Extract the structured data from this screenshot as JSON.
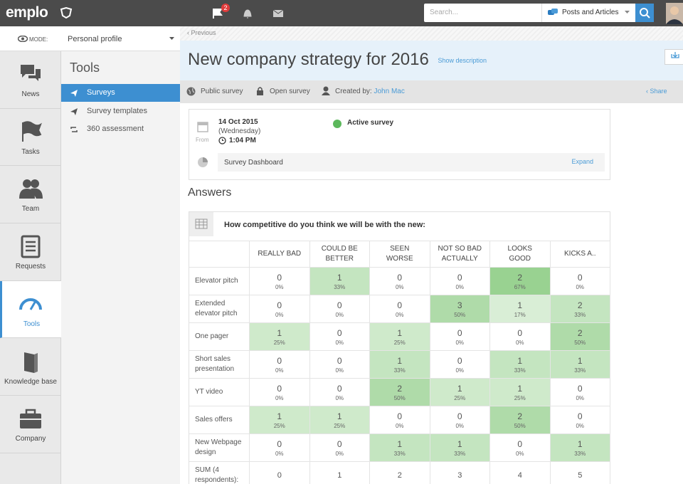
{
  "header": {
    "logo": "emplo",
    "notification_count": 2,
    "search_placeholder": "Search...",
    "search_scope": "Posts and Articles"
  },
  "sidebar": {
    "mode_label": "MODE:",
    "mode_value": "Personal profile",
    "nav": [
      "News",
      "Tasks",
      "Team",
      "Requests",
      "Tools",
      "Knowledge base",
      "Company"
    ]
  },
  "tools_panel": {
    "title": "Tools",
    "items": [
      "Surveys",
      "Survey templates",
      "360 assessment"
    ]
  },
  "page": {
    "back": "‹ Previous",
    "title": "New company strategy for 2016",
    "show_description": "Show description",
    "meta": {
      "visibility": "Public survey",
      "access": "Open survey",
      "created_by_label": "Created by:",
      "created_by": "John Mac",
      "share": "Share"
    }
  },
  "survey_info": {
    "date": "14 Oct 2015",
    "weekday": "(Wednesday)",
    "time": "1:04 PM",
    "from": "From",
    "status": "Active survey",
    "dashboard": "Survey Dashboard",
    "expand": "Expand"
  },
  "answers": {
    "heading": "Answers",
    "question": "How competitive do you think we will be with the new:",
    "columns": [
      "REALLY BAD",
      "COULD BE BETTER",
      "SEEN WORSE",
      "NOT SO BAD ACTUALLY",
      "LOOKS GOOD",
      "KICKS A.."
    ],
    "rows": [
      {
        "label": "Elevator pitch",
        "cells": [
          {
            "count": 0,
            "percent": "0%"
          },
          {
            "count": 1,
            "percent": "33%"
          },
          {
            "count": 0,
            "percent": "0%"
          },
          {
            "count": 0,
            "percent": "0%"
          },
          {
            "count": 2,
            "percent": "67%"
          },
          {
            "count": 0,
            "percent": "0%"
          }
        ]
      },
      {
        "label": "Extended elevator pitch",
        "cells": [
          {
            "count": 0,
            "percent": "0%"
          },
          {
            "count": 0,
            "percent": "0%"
          },
          {
            "count": 0,
            "percent": "0%"
          },
          {
            "count": 3,
            "percent": "50%"
          },
          {
            "count": 1,
            "percent": "17%"
          },
          {
            "count": 2,
            "percent": "33%"
          }
        ]
      },
      {
        "label": "One pager",
        "cells": [
          {
            "count": 1,
            "percent": "25%"
          },
          {
            "count": 0,
            "percent": "0%"
          },
          {
            "count": 1,
            "percent": "25%"
          },
          {
            "count": 0,
            "percent": "0%"
          },
          {
            "count": 0,
            "percent": "0%"
          },
          {
            "count": 2,
            "percent": "50%"
          }
        ]
      },
      {
        "label": "Short sales presentation",
        "cells": [
          {
            "count": 0,
            "percent": "0%"
          },
          {
            "count": 0,
            "percent": "0%"
          },
          {
            "count": 1,
            "percent": "33%"
          },
          {
            "count": 0,
            "percent": "0%"
          },
          {
            "count": 1,
            "percent": "33%"
          },
          {
            "count": 1,
            "percent": "33%"
          }
        ]
      },
      {
        "label": "YT video",
        "cells": [
          {
            "count": 0,
            "percent": "0%"
          },
          {
            "count": 0,
            "percent": "0%"
          },
          {
            "count": 2,
            "percent": "50%"
          },
          {
            "count": 1,
            "percent": "25%"
          },
          {
            "count": 1,
            "percent": "25%"
          },
          {
            "count": 0,
            "percent": "0%"
          }
        ]
      },
      {
        "label": "Sales offers",
        "cells": [
          {
            "count": 1,
            "percent": "25%"
          },
          {
            "count": 1,
            "percent": "25%"
          },
          {
            "count": 0,
            "percent": "0%"
          },
          {
            "count": 0,
            "percent": "0%"
          },
          {
            "count": 2,
            "percent": "50%"
          },
          {
            "count": 0,
            "percent": "0%"
          }
        ]
      },
      {
        "label": "New Webpage design",
        "cells": [
          {
            "count": 0,
            "percent": "0%"
          },
          {
            "count": 0,
            "percent": "0%"
          },
          {
            "count": 1,
            "percent": "33%"
          },
          {
            "count": 1,
            "percent": "33%"
          },
          {
            "count": 0,
            "percent": "0%"
          },
          {
            "count": 1,
            "percent": "33%"
          }
        ]
      }
    ],
    "sum": {
      "label": "SUM (4 respondents):",
      "values": [
        0,
        1,
        2,
        3,
        4,
        5
      ]
    }
  }
}
